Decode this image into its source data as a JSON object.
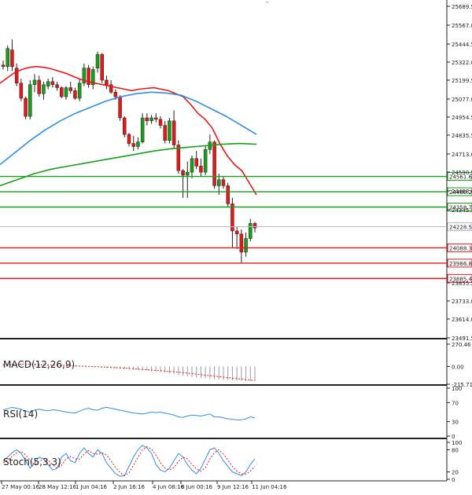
{
  "chart_data": {
    "type": "candlestick",
    "main": {
      "y_ticks": [
        "25689.5",
        "25567.0",
        "25444.5",
        "25322.0",
        "25199.5",
        "25077.0",
        "24954.5",
        "24835.5",
        "24713.0",
        "24590.5",
        "24468.0",
        "24345.5",
        "23855.5",
        "23733.0",
        "23614.0",
        "23491.5"
      ],
      "ylim": [
        23491.5,
        25689.5
      ],
      "candles": [
        {
          "o": 25300,
          "h": 25330,
          "l": 25270,
          "c": 25290
        },
        {
          "o": 25290,
          "h": 25430,
          "l": 25260,
          "c": 25410
        },
        {
          "o": 25400,
          "h": 25470,
          "l": 25260,
          "c": 25290
        },
        {
          "o": 25280,
          "h": 25310,
          "l": 25160,
          "c": 25180
        },
        {
          "o": 25180,
          "h": 25210,
          "l": 25060,
          "c": 25080
        },
        {
          "o": 25080,
          "h": 25090,
          "l": 24940,
          "c": 24960
        },
        {
          "o": 24960,
          "h": 25200,
          "l": 24940,
          "c": 25170
        },
        {
          "o": 25170,
          "h": 25240,
          "l": 25120,
          "c": 25200
        },
        {
          "o": 25200,
          "h": 25230,
          "l": 25090,
          "c": 25110
        },
        {
          "o": 25110,
          "h": 25190,
          "l": 25070,
          "c": 25170
        },
        {
          "o": 25160,
          "h": 25210,
          "l": 25140,
          "c": 25190
        },
        {
          "o": 25190,
          "h": 25220,
          "l": 25150,
          "c": 25170
        },
        {
          "o": 25170,
          "h": 25190,
          "l": 25130,
          "c": 25150
        },
        {
          "o": 25150,
          "h": 25160,
          "l": 25080,
          "c": 25090
        },
        {
          "o": 25090,
          "h": 25160,
          "l": 25070,
          "c": 25150
        },
        {
          "o": 25150,
          "h": 25190,
          "l": 25110,
          "c": 25130
        },
        {
          "o": 25130,
          "h": 25150,
          "l": 25070,
          "c": 25080
        },
        {
          "o": 25080,
          "h": 25210,
          "l": 25060,
          "c": 25180
        },
        {
          "o": 25180,
          "h": 25310,
          "l": 25160,
          "c": 25280
        },
        {
          "o": 25280,
          "h": 25300,
          "l": 25150,
          "c": 25170
        },
        {
          "o": 25170,
          "h": 25290,
          "l": 25140,
          "c": 25270
        },
        {
          "o": 25280,
          "h": 25390,
          "l": 25250,
          "c": 25370
        },
        {
          "o": 25370,
          "h": 25380,
          "l": 25180,
          "c": 25200
        },
        {
          "o": 25200,
          "h": 25230,
          "l": 25140,
          "c": 25170
        },
        {
          "o": 25170,
          "h": 25200,
          "l": 25110,
          "c": 25120
        },
        {
          "o": 25120,
          "h": 25140,
          "l": 25070,
          "c": 25090
        },
        {
          "o": 25090,
          "h": 25100,
          "l": 24930,
          "c": 24950
        },
        {
          "o": 24950,
          "h": 24960,
          "l": 24820,
          "c": 24840
        },
        {
          "o": 24840,
          "h": 24850,
          "l": 24760,
          "c": 24780
        },
        {
          "o": 24780,
          "h": 24830,
          "l": 24730,
          "c": 24760
        },
        {
          "o": 24760,
          "h": 24820,
          "l": 24740,
          "c": 24790
        },
        {
          "o": 24790,
          "h": 24980,
          "l": 24780,
          "c": 24950
        },
        {
          "o": 24950,
          "h": 24980,
          "l": 24900,
          "c": 24930
        },
        {
          "o": 24930,
          "h": 24970,
          "l": 24910,
          "c": 24950
        },
        {
          "o": 24950,
          "h": 24980,
          "l": 24920,
          "c": 24940
        },
        {
          "o": 24940,
          "h": 24960,
          "l": 24880,
          "c": 24900
        },
        {
          "o": 24900,
          "h": 24930,
          "l": 24780,
          "c": 24800
        },
        {
          "o": 24800,
          "h": 24950,
          "l": 24780,
          "c": 24930
        },
        {
          "o": 24930,
          "h": 25000,
          "l": 24750,
          "c": 24770
        },
        {
          "o": 24770,
          "h": 24800,
          "l": 24580,
          "c": 24600
        },
        {
          "o": 24600,
          "h": 24610,
          "l": 24420,
          "c": 24570
        },
        {
          "o": 24570,
          "h": 24660,
          "l": 24420,
          "c": 24590
        },
        {
          "o": 24590,
          "h": 24700,
          "l": 24550,
          "c": 24680
        },
        {
          "o": 24680,
          "h": 24730,
          "l": 24610,
          "c": 24630
        },
        {
          "o": 24630,
          "h": 24680,
          "l": 24560,
          "c": 24590
        },
        {
          "o": 24590,
          "h": 24770,
          "l": 24570,
          "c": 24740
        },
        {
          "o": 24740,
          "h": 24840,
          "l": 24710,
          "c": 24790
        },
        {
          "o": 24790,
          "h": 24800,
          "l": 24480,
          "c": 24500
        },
        {
          "o": 24500,
          "h": 24580,
          "l": 24440,
          "c": 24540
        },
        {
          "o": 24540,
          "h": 24560,
          "l": 24480,
          "c": 24500
        },
        {
          "o": 24500,
          "h": 24520,
          "l": 24360,
          "c": 24380
        },
        {
          "o": 24380,
          "h": 24420,
          "l": 24090,
          "c": 24200
        },
        {
          "o": 24200,
          "h": 24230,
          "l": 24080,
          "c": 24180
        },
        {
          "o": 24180,
          "h": 24210,
          "l": 23990,
          "c": 24060
        },
        {
          "o": 24060,
          "h": 24190,
          "l": 24030,
          "c": 24150
        },
        {
          "o": 24150,
          "h": 24280,
          "l": 24130,
          "c": 24250
        },
        {
          "o": 24250,
          "h": 24260,
          "l": 24190,
          "c": 24220
        }
      ],
      "ma_red": [
        25180,
        25215,
        25250,
        25270,
        25285,
        25290,
        25285,
        25275,
        25260,
        25245,
        25225,
        25205,
        25190,
        25180,
        25170,
        25160,
        25150,
        25140,
        25130,
        25140,
        25145,
        25150,
        25140,
        25130,
        25110,
        25090,
        25040,
        24980,
        24940,
        24880,
        24780,
        24700,
        24640,
        24600,
        24520,
        24440
      ],
      "ma_blue": [
        24640,
        24720,
        24800,
        24870,
        24930,
        24980,
        25020,
        25060,
        25090,
        25110,
        25120,
        25115,
        25100,
        25060,
        25010,
        24960,
        24900,
        24840
      ],
      "ma_green": [
        24500,
        24540,
        24580,
        24610,
        24630,
        24650,
        24670,
        24690,
        24710,
        24730,
        24745,
        24755,
        24765,
        24775,
        24780,
        24775
      ],
      "levels": [
        {
          "value": 24561.6,
          "label": "24561.6",
          "color": "#18a018"
        },
        {
          "value": 24460.2,
          "label": "24460.2",
          "color": "#18a018"
        },
        {
          "value": 24358.7,
          "label": "24358.7",
          "color": "#18a018"
        },
        {
          "value": 24228.5,
          "label": "24228.5",
          "color": "#b9b9c9",
          "current": true
        },
        {
          "value": 24088.3,
          "label": "24088.3",
          "color": "#e81818"
        },
        {
          "value": 23986.8,
          "label": "23986.8",
          "color": "#e81818"
        },
        {
          "value": 23885.4,
          "label": "23885.4",
          "color": "#e81818"
        }
      ]
    },
    "macd": {
      "label": "MACD(12,26,9)",
      "y_ticks": [
        "270.46",
        "0.00",
        "-215.71"
      ],
      "ylim": [
        -215.71,
        270.46
      ],
      "histogram": [
        30,
        32,
        35,
        36,
        37,
        37,
        36,
        34,
        32,
        30,
        26,
        22,
        18,
        16,
        14,
        12,
        10,
        6,
        2,
        -2,
        -6,
        -10,
        -14,
        -18,
        -22,
        -24,
        -28,
        -32,
        -36,
        -40,
        -44,
        -48,
        -52,
        -58,
        -64,
        -70,
        -78,
        -86,
        -94,
        -104,
        -112,
        -120,
        -128,
        -134,
        -140,
        -146,
        -152,
        -156,
        -160,
        -164,
        -166,
        -168,
        -170,
        -172,
        -174,
        -176,
        -178
      ],
      "signal": [
        20,
        22,
        24,
        25,
        26,
        26,
        25,
        24,
        22,
        20,
        18,
        16,
        14,
        12,
        10,
        8,
        6,
        4,
        2,
        0,
        -2,
        -4,
        -6,
        -9,
        -12,
        -15,
        -18,
        -21,
        -24,
        -28,
        -32,
        -36,
        -40,
        -44,
        -48,
        -52,
        -56,
        -60,
        -64,
        -70,
        -76,
        -82,
        -88,
        -94,
        -100,
        -106,
        -112,
        -118,
        -124,
        -130,
        -136,
        -142,
        -148,
        -154,
        -160,
        -166,
        -172
      ]
    },
    "rsi": {
      "label": "RSI(14)",
      "y_ticks": [
        "100",
        "70",
        "30",
        "0"
      ],
      "ylim": [
        0,
        100
      ],
      "values": [
        55,
        57,
        60,
        58,
        56,
        52,
        50,
        54,
        56,
        54,
        53,
        55,
        54,
        52,
        50,
        49,
        48,
        52,
        56,
        58,
        55,
        54,
        58,
        60,
        58,
        56,
        54,
        52,
        50,
        48,
        47,
        46,
        48,
        50,
        49,
        50,
        48,
        46,
        44,
        40,
        39,
        42,
        44,
        43,
        42,
        44,
        46,
        40,
        40,
        38,
        36,
        35,
        34,
        34,
        36,
        40,
        38
      ]
    },
    "stoch": {
      "label": "Stoch(5,3,3)",
      "y_ticks": [
        "100",
        "80",
        "20",
        "0"
      ],
      "ylim": [
        0,
        100
      ],
      "k": [
        50,
        60,
        72,
        80,
        70,
        50,
        30,
        45,
        60,
        55,
        40,
        25,
        30,
        60,
        70,
        50,
        45,
        70,
        85,
        70,
        60,
        80,
        70,
        45,
        30,
        15,
        8,
        10,
        35,
        60,
        80,
        92,
        85,
        70,
        40,
        25,
        20,
        30,
        50,
        70,
        60,
        40,
        25,
        15,
        30,
        55,
        80,
        85,
        70,
        50,
        35,
        20,
        15,
        10,
        20,
        40,
        55
      ],
      "d": [
        45,
        52,
        62,
        72,
        75,
        66,
        50,
        40,
        48,
        55,
        52,
        40,
        30,
        38,
        55,
        62,
        55,
        55,
        68,
        78,
        70,
        68,
        72,
        66,
        50,
        32,
        18,
        10,
        18,
        38,
        60,
        80,
        88,
        82,
        65,
        45,
        30,
        25,
        32,
        48,
        60,
        55,
        40,
        28,
        22,
        32,
        55,
        72,
        80,
        68,
        52,
        35,
        22,
        15,
        14,
        22,
        35
      ]
    },
    "x_labels": [
      "27 May 00:16",
      "28 May 12:16",
      "1 Jun 04:16",
      "2 Jun 16:16",
      "4 Jun 08:16",
      "8 Jun 00:16",
      "9 Jun 12:16",
      "11 Jun 04:16"
    ]
  },
  "colors": {
    "up": "#18a018",
    "down": "#e81818",
    "ma_red": "#e81818",
    "ma_blue": "#2f8ee8",
    "ma_green": "#18a018",
    "rsi": "#2f8ee8",
    "stoch_k": "#2f8ee8",
    "stoch_d": "#e81818"
  }
}
